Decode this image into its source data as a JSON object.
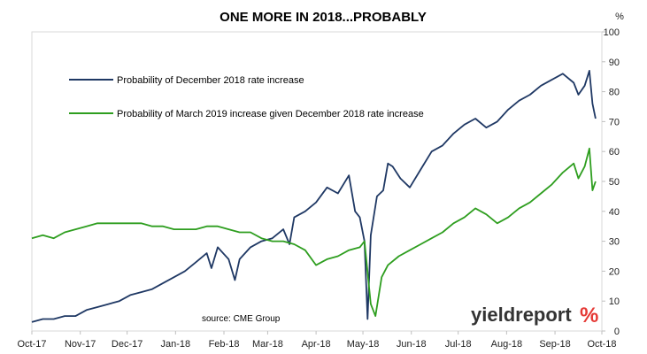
{
  "chart_data": {
    "type": "line",
    "title": "ONE MORE IN 2018...PROBABLY",
    "unit_label": "%",
    "source": "source: CME Group",
    "brand": {
      "text": "yieldreport",
      "symbol": "%",
      "color": "#333333",
      "symbol_color": "#e53935"
    },
    "ylim": [
      0,
      100
    ],
    "yticks": [
      0,
      10,
      20,
      30,
      40,
      50,
      60,
      70,
      80,
      90,
      100
    ],
    "y_axis_side": "right",
    "xlim": [
      "2017-10-01",
      "2018-10-01"
    ],
    "xtick_labels": [
      "Oct-17",
      "Nov-17",
      "Dec-17",
      "Jan-18",
      "Feb-18",
      "Mar-18",
      "Apr-18",
      "May-18",
      "Jun-18",
      "Jul-18",
      "Aug-18",
      "Sep-18",
      "Oct-18"
    ],
    "xtick_dates": [
      "2017-10-01",
      "2017-11-01",
      "2017-12-01",
      "2018-01-01",
      "2018-02-01",
      "2018-03-01",
      "2018-04-01",
      "2018-05-01",
      "2018-06-01",
      "2018-07-01",
      "2018-08-01",
      "2018-09-01",
      "2018-10-01"
    ],
    "grid": false,
    "legend_position": "top-left",
    "series": [
      {
        "name": "Probability of December 2018 rate increase",
        "color": "#1f3864",
        "points": [
          [
            "2017-10-01",
            3
          ],
          [
            "2017-10-08",
            4
          ],
          [
            "2017-10-15",
            4
          ],
          [
            "2017-10-22",
            5
          ],
          [
            "2017-10-29",
            5
          ],
          [
            "2017-11-05",
            7
          ],
          [
            "2017-11-12",
            8
          ],
          [
            "2017-11-19",
            9
          ],
          [
            "2017-11-26",
            10
          ],
          [
            "2017-12-03",
            12
          ],
          [
            "2017-12-10",
            13
          ],
          [
            "2017-12-17",
            14
          ],
          [
            "2017-12-24",
            16
          ],
          [
            "2017-12-31",
            18
          ],
          [
            "2018-01-07",
            20
          ],
          [
            "2018-01-14",
            23
          ],
          [
            "2018-01-21",
            26
          ],
          [
            "2018-01-24",
            21
          ],
          [
            "2018-01-28",
            28
          ],
          [
            "2018-02-04",
            24
          ],
          [
            "2018-02-08",
            17
          ],
          [
            "2018-02-11",
            24
          ],
          [
            "2018-02-18",
            28
          ],
          [
            "2018-02-25",
            30
          ],
          [
            "2018-03-04",
            31
          ],
          [
            "2018-03-11",
            34
          ],
          [
            "2018-03-15",
            29
          ],
          [
            "2018-03-18",
            38
          ],
          [
            "2018-03-25",
            40
          ],
          [
            "2018-04-01",
            43
          ],
          [
            "2018-04-08",
            48
          ],
          [
            "2018-04-15",
            46
          ],
          [
            "2018-04-22",
            52
          ],
          [
            "2018-04-26",
            40
          ],
          [
            "2018-04-29",
            38
          ],
          [
            "2018-05-02",
            30
          ],
          [
            "2018-05-04",
            4
          ],
          [
            "2018-05-06",
            32
          ],
          [
            "2018-05-10",
            45
          ],
          [
            "2018-05-14",
            47
          ],
          [
            "2018-05-17",
            56
          ],
          [
            "2018-05-20",
            55
          ],
          [
            "2018-05-25",
            51
          ],
          [
            "2018-05-31",
            48
          ],
          [
            "2018-06-07",
            54
          ],
          [
            "2018-06-14",
            60
          ],
          [
            "2018-06-21",
            62
          ],
          [
            "2018-06-28",
            66
          ],
          [
            "2018-07-05",
            69
          ],
          [
            "2018-07-12",
            71
          ],
          [
            "2018-07-19",
            68
          ],
          [
            "2018-07-26",
            70
          ],
          [
            "2018-08-02",
            74
          ],
          [
            "2018-08-09",
            77
          ],
          [
            "2018-08-16",
            79
          ],
          [
            "2018-08-23",
            82
          ],
          [
            "2018-08-30",
            84
          ],
          [
            "2018-09-06",
            86
          ],
          [
            "2018-09-13",
            83
          ],
          [
            "2018-09-16",
            79
          ],
          [
            "2018-09-20",
            82
          ],
          [
            "2018-09-23",
            87
          ],
          [
            "2018-09-25",
            76
          ],
          [
            "2018-09-27",
            71
          ]
        ]
      },
      {
        "name": "Probability of March 2019 increase given December 2018 rate increase",
        "color": "#2e9e1f",
        "points": [
          [
            "2017-10-01",
            31
          ],
          [
            "2017-10-08",
            32
          ],
          [
            "2017-10-15",
            31
          ],
          [
            "2017-10-22",
            33
          ],
          [
            "2017-10-29",
            34
          ],
          [
            "2017-11-05",
            35
          ],
          [
            "2017-11-12",
            36
          ],
          [
            "2017-11-19",
            36
          ],
          [
            "2017-11-26",
            36
          ],
          [
            "2017-12-03",
            36
          ],
          [
            "2017-12-10",
            36
          ],
          [
            "2017-12-17",
            35
          ],
          [
            "2017-12-24",
            35
          ],
          [
            "2017-12-31",
            34
          ],
          [
            "2018-01-07",
            34
          ],
          [
            "2018-01-14",
            34
          ],
          [
            "2018-01-21",
            35
          ],
          [
            "2018-01-28",
            35
          ],
          [
            "2018-02-04",
            34
          ],
          [
            "2018-02-11",
            33
          ],
          [
            "2018-02-18",
            33
          ],
          [
            "2018-02-25",
            31
          ],
          [
            "2018-03-04",
            30
          ],
          [
            "2018-03-11",
            30
          ],
          [
            "2018-03-18",
            29
          ],
          [
            "2018-03-25",
            27
          ],
          [
            "2018-04-01",
            22
          ],
          [
            "2018-04-08",
            24
          ],
          [
            "2018-04-15",
            25
          ],
          [
            "2018-04-22",
            27
          ],
          [
            "2018-04-29",
            28
          ],
          [
            "2018-05-02",
            30
          ],
          [
            "2018-05-06",
            9
          ],
          [
            "2018-05-09",
            5
          ],
          [
            "2018-05-13",
            18
          ],
          [
            "2018-05-17",
            22
          ],
          [
            "2018-05-24",
            25
          ],
          [
            "2018-05-31",
            27
          ],
          [
            "2018-06-07",
            29
          ],
          [
            "2018-06-14",
            31
          ],
          [
            "2018-06-21",
            33
          ],
          [
            "2018-06-28",
            36
          ],
          [
            "2018-07-05",
            38
          ],
          [
            "2018-07-12",
            41
          ],
          [
            "2018-07-19",
            39
          ],
          [
            "2018-07-26",
            36
          ],
          [
            "2018-08-02",
            38
          ],
          [
            "2018-08-09",
            41
          ],
          [
            "2018-08-16",
            43
          ],
          [
            "2018-08-23",
            46
          ],
          [
            "2018-08-30",
            49
          ],
          [
            "2018-09-06",
            53
          ],
          [
            "2018-09-13",
            56
          ],
          [
            "2018-09-16",
            51
          ],
          [
            "2018-09-20",
            55
          ],
          [
            "2018-09-23",
            61
          ],
          [
            "2018-09-25",
            47
          ],
          [
            "2018-09-27",
            50
          ]
        ]
      }
    ]
  }
}
